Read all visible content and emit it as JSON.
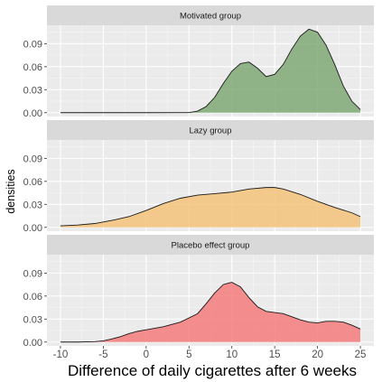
{
  "chart_data": {
    "type": "area",
    "subtype": "faceted density",
    "xlabel": "Difference of daily cigarettes after 6 weeks",
    "ylabel": "densities",
    "xlim": [
      -10,
      25
    ],
    "ylim": [
      0,
      0.1
    ],
    "x_ticks": [
      -10,
      -5,
      0,
      5,
      10,
      15,
      20,
      25
    ],
    "y_ticks": [
      0,
      0.03,
      0.06,
      0.09
    ],
    "x_tick_labels": [
      "-10",
      "-5",
      "0",
      "5",
      "10",
      "15",
      "20",
      "25"
    ],
    "y_tick_labels": [
      "0.00",
      "0.03",
      "0.06",
      "0.09"
    ],
    "grid": true,
    "legend": "none",
    "panels": [
      {
        "name": "Motivated group",
        "color": "#7fa876",
        "points": [
          [
            -10,
            0
          ],
          [
            0,
            0
          ],
          [
            5,
            0.0001
          ],
          [
            6,
            0.002
          ],
          [
            7,
            0.008
          ],
          [
            8,
            0.02
          ],
          [
            9,
            0.038
          ],
          [
            10,
            0.054
          ],
          [
            11,
            0.064
          ],
          [
            12,
            0.066
          ],
          [
            13,
            0.058
          ],
          [
            14,
            0.047
          ],
          [
            15,
            0.05
          ],
          [
            16,
            0.063
          ],
          [
            17,
            0.083
          ],
          [
            18,
            0.1
          ],
          [
            19,
            0.109
          ],
          [
            20,
            0.105
          ],
          [
            21,
            0.088
          ],
          [
            22,
            0.063
          ],
          [
            23,
            0.035
          ],
          [
            24,
            0.015
          ],
          [
            25,
            0.004
          ]
        ]
      },
      {
        "name": "Lazy group",
        "color": "#f5c27a",
        "points": [
          [
            -10,
            0.002
          ],
          [
            -8,
            0.003
          ],
          [
            -6,
            0.005
          ],
          [
            -4,
            0.009
          ],
          [
            -2,
            0.014
          ],
          [
            0,
            0.022
          ],
          [
            2,
            0.031
          ],
          [
            4,
            0.038
          ],
          [
            6,
            0.042
          ],
          [
            8,
            0.044
          ],
          [
            10,
            0.046
          ],
          [
            12,
            0.05
          ],
          [
            14,
            0.052
          ],
          [
            15,
            0.052
          ],
          [
            16,
            0.05
          ],
          [
            18,
            0.043
          ],
          [
            20,
            0.034
          ],
          [
            22,
            0.026
          ],
          [
            24,
            0.019
          ],
          [
            25,
            0.014
          ]
        ]
      },
      {
        "name": "Placebo effect group",
        "color": "#f47c7c",
        "points": [
          [
            -10,
            0
          ],
          [
            -8,
            0
          ],
          [
            -6,
            0.0005
          ],
          [
            -5,
            0.0015
          ],
          [
            -4,
            0.004
          ],
          [
            -3,
            0.007
          ],
          [
            -2,
            0.011
          ],
          [
            -1,
            0.014
          ],
          [
            0,
            0.016
          ],
          [
            2,
            0.02
          ],
          [
            4,
            0.026
          ],
          [
            6,
            0.037
          ],
          [
            7,
            0.05
          ],
          [
            8,
            0.064
          ],
          [
            9,
            0.075
          ],
          [
            10,
            0.078
          ],
          [
            11,
            0.072
          ],
          [
            12,
            0.058
          ],
          [
            13,
            0.046
          ],
          [
            14,
            0.04
          ],
          [
            16,
            0.037
          ],
          [
            18,
            0.029
          ],
          [
            19,
            0.026
          ],
          [
            20,
            0.025
          ],
          [
            21,
            0.027
          ],
          [
            22,
            0.027
          ],
          [
            23,
            0.026
          ],
          [
            24,
            0.022
          ],
          [
            25,
            0.017
          ]
        ]
      }
    ]
  }
}
